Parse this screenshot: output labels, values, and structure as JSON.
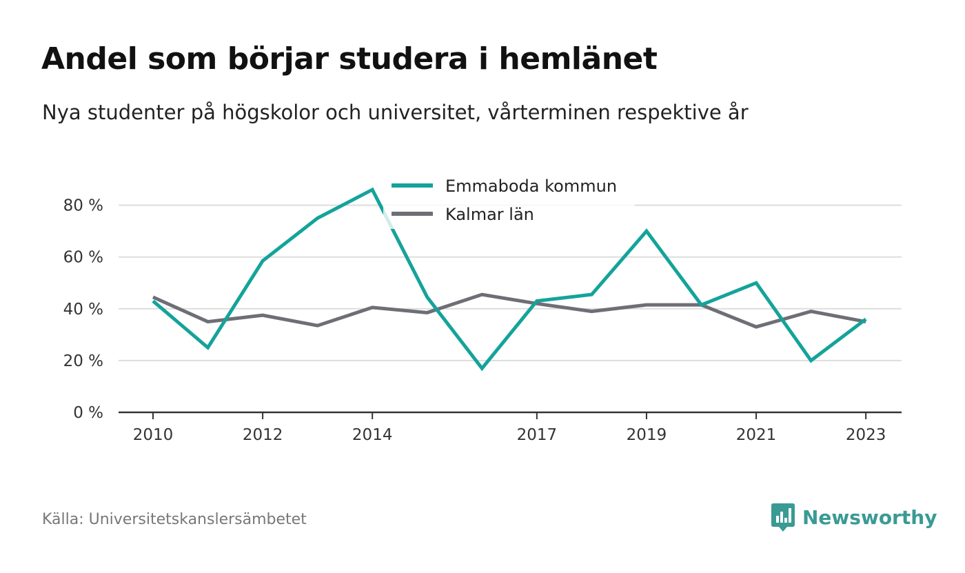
{
  "title": "Andel som börjar studera i hemlänet",
  "subtitle": "Nya studenter på högskolor och universitet, vårterminen respektive år",
  "source": "Källa: Universitetskanslersämbetet",
  "brand": {
    "name": "Newsworthy",
    "icon": "newsworthy-logo-icon",
    "color": "#3a9a94"
  },
  "chart_data": {
    "type": "line",
    "x": [
      2010,
      2011,
      2012,
      2013,
      2014,
      2015,
      2016,
      2017,
      2018,
      2019,
      2020,
      2021,
      2022,
      2023
    ],
    "x_ticks": [
      "2010",
      "2012",
      "2014",
      "2017",
      "2019",
      "2021",
      "2023"
    ],
    "y_ticks": [
      "0 %",
      "20 %",
      "40 %",
      "60 %",
      "80 %"
    ],
    "y_tick_values": [
      0,
      20,
      40,
      60,
      80
    ],
    "ylim": [
      0,
      90
    ],
    "grid": true,
    "legend_position": "top-center",
    "series": [
      {
        "name": "Emmaboda kommun",
        "color": "#14a39a",
        "values": [
          43,
          25,
          58.5,
          75,
          86,
          44.5,
          17,
          43,
          45.5,
          70,
          41.5,
          50,
          20,
          36
        ]
      },
      {
        "name": "Kalmar län",
        "color": "#6e6e76",
        "values": [
          44.5,
          35,
          37.5,
          33.5,
          40.5,
          38.5,
          45.5,
          42,
          39,
          41.5,
          41.5,
          33,
          39,
          35
        ]
      }
    ]
  }
}
